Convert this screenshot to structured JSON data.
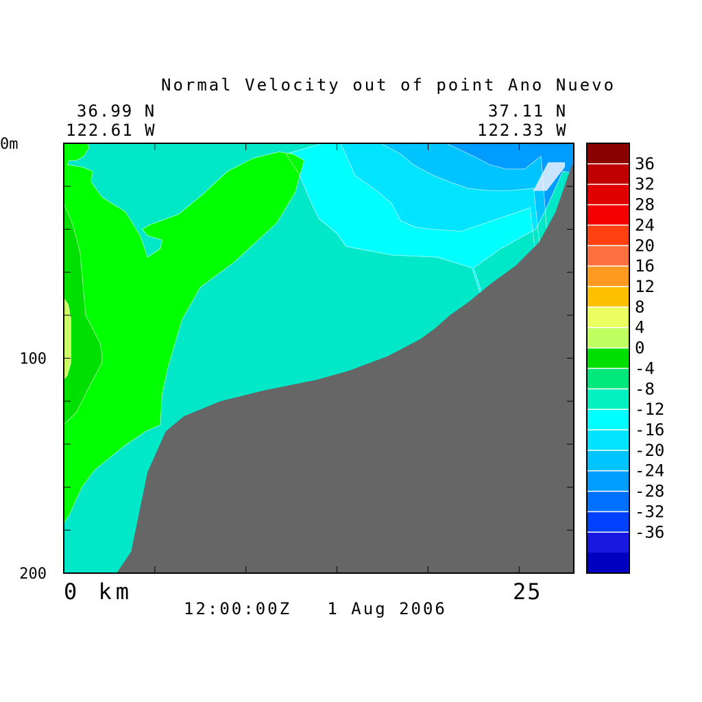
{
  "chart_data": {
    "type": "heatmap",
    "title": "Normal Velocity out of point Ano Nuevo",
    "coords": {
      "left_lat": "36.99 N",
      "left_lon": "122.61 W",
      "right_lat": "37.11 N",
      "right_lon": "122.33 W"
    },
    "y_axis": {
      "range": [
        0,
        200
      ],
      "reversed": true,
      "unit": "m",
      "labels": [
        "0m",
        "100",
        "200"
      ],
      "label_values": [
        0,
        100,
        200
      ],
      "ticks": [
        20,
        40,
        60,
        80,
        100,
        120,
        140,
        160,
        180
      ]
    },
    "x_axis": {
      "range": [
        0,
        28
      ],
      "unit": "km",
      "labels": [
        "0 km",
        "25"
      ],
      "label_values": [
        0,
        25
      ],
      "ticks": [
        5,
        10,
        15,
        20,
        25
      ]
    },
    "time_label": "12:00:00Z   1 Aug 2006",
    "colorbar": {
      "levels": [
        "36",
        "32",
        "28",
        "24",
        "20",
        "16",
        "12",
        "8",
        "4",
        "0",
        "-4",
        "-8",
        "-12",
        "-16",
        "-20",
        "-24",
        "-28",
        "-32",
        "-36"
      ],
      "colors": [
        "#8b0000",
        "#c00000",
        "#e00000",
        "#f40000",
        "#ff4010",
        "#ff7040",
        "#ff9a20",
        "#ffc000",
        "#ecff60",
        "#c0ff60",
        "#00e000",
        "#00e87c",
        "#00f0c0",
        "#00ffff",
        "#00e4ff",
        "#00c4ff",
        "#009cff",
        "#0070ff",
        "#0040ff",
        "#1818e0",
        "#0000c0"
      ]
    },
    "bathymetry_color": "#666666",
    "regions": [
      {
        "color": "#00e8c8",
        "points": [
          [
            0,
            0
          ],
          [
            28,
            0
          ],
          [
            28,
            200
          ],
          [
            0,
            200
          ]
        ]
      },
      {
        "color": "#00ffff",
        "points": [
          [
            14.2,
            0
          ],
          [
            28,
            0
          ],
          [
            28,
            200
          ],
          [
            22.4,
            58
          ],
          [
            20.5,
            53
          ],
          [
            18,
            52
          ],
          [
            15.5,
            48
          ],
          [
            15,
            42
          ],
          [
            14,
            35
          ],
          [
            13.6,
            28
          ],
          [
            12.9,
            14
          ],
          [
            12.2,
            5
          ]
        ]
      },
      {
        "color": "#00e4ff",
        "points": [
          [
            15.2,
            0
          ],
          [
            28,
            0
          ],
          [
            28,
            200
          ],
          [
            25.6,
            30
          ],
          [
            21.8,
            41
          ],
          [
            20.2,
            40
          ],
          [
            19.3,
            39
          ],
          [
            18.5,
            36
          ],
          [
            18,
            28
          ],
          [
            17.6,
            25
          ],
          [
            17,
            21
          ],
          [
            16,
            15
          ]
        ]
      },
      {
        "color": "#00c4ff",
        "points": [
          [
            17.4,
            0
          ],
          [
            28,
            0
          ],
          [
            28,
            200
          ],
          [
            25.8,
            21
          ],
          [
            24.5,
            22
          ],
          [
            23.3,
            22
          ],
          [
            22.2,
            21
          ],
          [
            21.2,
            18
          ],
          [
            20.3,
            15
          ],
          [
            19.2,
            10
          ],
          [
            18.5,
            5
          ]
        ]
      },
      {
        "color": "#009cff",
        "points": [
          [
            21,
            0
          ],
          [
            28,
            0
          ],
          [
            28,
            200
          ],
          [
            26.2,
            6
          ],
          [
            25.3,
            12
          ],
          [
            24.3,
            12
          ],
          [
            23.4,
            10
          ],
          [
            22.5,
            6
          ]
        ]
      },
      {
        "color": "#00ff00",
        "points": [
          [
            0,
            0
          ],
          [
            1.3,
            0
          ],
          [
            1.4,
            2
          ],
          [
            1.1,
            6
          ],
          [
            0.7,
            8
          ],
          [
            0.3,
            8
          ],
          [
            0.2,
            10
          ],
          [
            1,
            11
          ],
          [
            1.6,
            13
          ],
          [
            1.5,
            18
          ],
          [
            2.1,
            25
          ],
          [
            3.4,
            32
          ],
          [
            4.2,
            43
          ],
          [
            4.6,
            53
          ],
          [
            5.3,
            49
          ],
          [
            5.4,
            45
          ],
          [
            4.6,
            43
          ],
          [
            4.3,
            40
          ],
          [
            4.7,
            38
          ],
          [
            6.3,
            33
          ],
          [
            7.6,
            24
          ],
          [
            9,
            13
          ],
          [
            10.4,
            7
          ],
          [
            11.8,
            4
          ],
          [
            12.6,
            5
          ],
          [
            13.2,
            8
          ],
          [
            13,
            14
          ],
          [
            12.7,
            23
          ],
          [
            11.7,
            37
          ],
          [
            9.4,
            55
          ],
          [
            7.5,
            67
          ],
          [
            6.5,
            82
          ],
          [
            5.7,
            105
          ],
          [
            5.4,
            117
          ],
          [
            5.3,
            131
          ],
          [
            4.5,
            134
          ],
          [
            3.3,
            141
          ],
          [
            1.7,
            152
          ],
          [
            1,
            160
          ],
          [
            0.3,
            173
          ],
          [
            0,
            177
          ]
        ]
      },
      {
        "color": "#00e000",
        "points": [
          [
            0,
            28
          ],
          [
            0.5,
            38
          ],
          [
            0.9,
            51
          ],
          [
            1.2,
            80
          ],
          [
            2,
            93
          ],
          [
            2.1,
            98
          ],
          [
            2.1,
            102
          ],
          [
            1.3,
            115
          ],
          [
            0.7,
            125
          ],
          [
            0,
            131
          ]
        ]
      },
      {
        "color": "#ccff66",
        "points": [
          [
            0,
            72
          ],
          [
            0.25,
            75
          ],
          [
            0.4,
            82
          ],
          [
            0.4,
            102
          ],
          [
            0.2,
            108
          ],
          [
            0,
            110
          ]
        ]
      },
      {
        "color": "#c8e4ff",
        "points": [
          [
            26.6,
            9
          ],
          [
            27.5,
            9
          ],
          [
            27.5,
            11
          ],
          [
            26.5,
            22
          ],
          [
            25.8,
            22
          ]
        ]
      },
      {
        "color": "#00e8c8",
        "points": [
          [
            22.5,
            58
          ],
          [
            24,
            49
          ],
          [
            25.9,
            40
          ],
          [
            26.4,
            32
          ],
          [
            27.4,
            13
          ],
          [
            28,
            14
          ],
          [
            28,
            200
          ]
        ]
      }
    ],
    "bathymetry": [
      [
        2.9,
        200
      ],
      [
        3.7,
        190
      ],
      [
        4.6,
        153
      ],
      [
        5.6,
        134
      ],
      [
        6.6,
        127
      ],
      [
        8.6,
        120
      ],
      [
        11,
        115
      ],
      [
        13.9,
        110
      ],
      [
        15.6,
        106
      ],
      [
        17.8,
        99
      ],
      [
        19.6,
        91
      ],
      [
        20.4,
        86
      ],
      [
        21.2,
        80
      ],
      [
        22.2,
        74
      ],
      [
        23.5,
        65
      ],
      [
        24.8,
        57
      ],
      [
        26.1,
        46
      ],
      [
        27,
        32
      ],
      [
        27.9,
        10
      ],
      [
        28,
        10
      ],
      [
        28,
        200
      ]
    ]
  }
}
